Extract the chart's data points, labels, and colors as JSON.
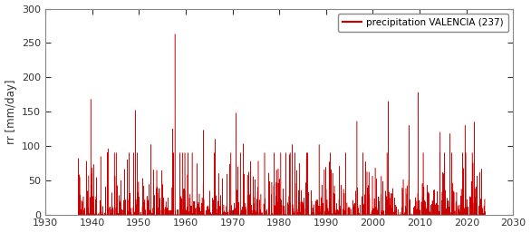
{
  "title": "",
  "ylabel": "rr [mm/day]",
  "xlabel": "",
  "xlim": [
    1930,
    2030
  ],
  "ylim": [
    0,
    300
  ],
  "yticks": [
    0,
    50,
    100,
    150,
    200,
    250,
    300
  ],
  "xticks": [
    1930,
    1940,
    1950,
    1960,
    1970,
    1980,
    1990,
    2000,
    2010,
    2020,
    2030
  ],
  "line_color": "#cc0000",
  "legend_label": "precipitation VALENCIA (237)",
  "legend_line_color": "#cc0000",
  "start_year": 1937,
  "end_year": 2023,
  "background_color": "#ffffff",
  "font_color": "#333333",
  "axes_color": "#888888",
  "seed": 12345,
  "rain_probability": 0.04,
  "notable_spikes": [
    {
      "year": 1939.7,
      "value": 168
    },
    {
      "year": 1957.7,
      "value": 263
    },
    {
      "year": 1949.2,
      "value": 152
    },
    {
      "year": 1957.2,
      "value": 125
    },
    {
      "year": 1963.8,
      "value": 123
    },
    {
      "year": 1966.3,
      "value": 110
    },
    {
      "year": 1970.7,
      "value": 148
    },
    {
      "year": 1972.3,
      "value": 103
    },
    {
      "year": 1982.8,
      "value": 102
    },
    {
      "year": 1988.5,
      "value": 102
    },
    {
      "year": 1996.6,
      "value": 136
    },
    {
      "year": 2000.5,
      "value": 68
    },
    {
      "year": 2003.3,
      "value": 165
    },
    {
      "year": 2007.7,
      "value": 130
    },
    {
      "year": 2009.7,
      "value": 178
    },
    {
      "year": 2019.7,
      "value": 130
    },
    {
      "year": 2021.7,
      "value": 135
    },
    {
      "year": 1943.5,
      "value": 96
    },
    {
      "year": 1947.5,
      "value": 80
    },
    {
      "year": 1952.5,
      "value": 102
    },
    {
      "year": 1960.5,
      "value": 75
    },
    {
      "year": 1975.5,
      "value": 78
    },
    {
      "year": 1979.4,
      "value": 65
    },
    {
      "year": 2014.4,
      "value": 120
    },
    {
      "year": 2016.5,
      "value": 118
    }
  ]
}
